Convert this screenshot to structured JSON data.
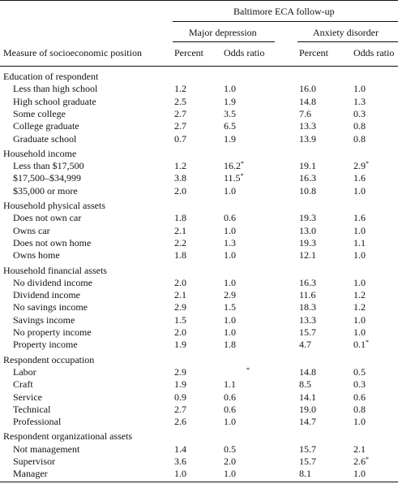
{
  "table": {
    "spanner": "Baltimore ECA follow-up",
    "groups": {
      "depression": "Major depression",
      "anxiety": "Anxiety disorder"
    },
    "stub_header": "Measure of socioeconomic position",
    "col_headers": [
      "Percent",
      "Odds ratio",
      "Percent",
      "Odds ratio"
    ],
    "sections": [
      {
        "title": "Education of respondent",
        "rows": [
          {
            "label": "Less than high school",
            "values": [
              "1.2",
              "1.0",
              "16.0",
              "1.0"
            ]
          },
          {
            "label": "High school graduate",
            "values": [
              "2.5",
              "1.9",
              "14.8",
              "1.3"
            ]
          },
          {
            "label": "Some college",
            "values": [
              "2.7",
              "3.5",
              "7.6",
              "0.3"
            ]
          },
          {
            "label": "College graduate",
            "values": [
              "2.7",
              "6.5",
              "13.3",
              "0.8"
            ]
          },
          {
            "label": "Graduate school",
            "values": [
              "0.7",
              "1.9",
              "13.9",
              "0.8"
            ]
          }
        ]
      },
      {
        "title": "Household income",
        "rows": [
          {
            "label": "Less than $17,500",
            "values": [
              "1.2",
              "16.2*",
              "19.1",
              "2.9*"
            ]
          },
          {
            "label": "$17,500–$34,999",
            "values": [
              "3.8",
              "11.5*",
              "16.3",
              "1.6"
            ]
          },
          {
            "label": "$35,000 or more",
            "values": [
              "2.0",
              "1.0",
              "10.8",
              "1.0"
            ]
          }
        ]
      },
      {
        "title": "Household physical assets",
        "rows": [
          {
            "label": "Does not own car",
            "values": [
              "1.8",
              "0.6",
              "19.3",
              "1.6"
            ]
          },
          {
            "label": "Owns car",
            "values": [
              "2.1",
              "1.0",
              "13.0",
              "1.0"
            ]
          },
          {
            "label": "Does not own home",
            "values": [
              "2.2",
              "1.3",
              "19.3",
              "1.1"
            ]
          },
          {
            "label": "Owns home",
            "values": [
              "1.8",
              "1.0",
              "12.1",
              "1.0"
            ]
          }
        ]
      },
      {
        "title": "Household financial assets",
        "rows": [
          {
            "label": "No dividend income",
            "values": [
              "2.0",
              "1.0",
              "16.3",
              "1.0"
            ]
          },
          {
            "label": "Dividend income",
            "values": [
              "2.1",
              "2.9",
              "11.6",
              "1.2"
            ]
          },
          {
            "label": "No savings income",
            "values": [
              "2.9",
              "1.5",
              "18.3",
              "1.2"
            ]
          },
          {
            "label": "Savings income",
            "values": [
              "1.5",
              "1.0",
              "13.3",
              "1.0"
            ]
          },
          {
            "label": "No property income",
            "values": [
              "2.0",
              "1.0",
              "15.7",
              "1.0"
            ]
          },
          {
            "label": "Property income",
            "values": [
              "1.9",
              "1.8",
              "4.7",
              "0.1*"
            ]
          }
        ]
      },
      {
        "title": "Respondent occupation",
        "rows": [
          {
            "label": "Labor",
            "values": [
              "2.9",
              "*",
              "14.8",
              "0.5"
            ]
          },
          {
            "label": "Craft",
            "values": [
              "1.9",
              "1.1",
              "8.5",
              "0.3"
            ]
          },
          {
            "label": "Service",
            "values": [
              "0.9",
              "0.6",
              "14.1",
              "0.6"
            ]
          },
          {
            "label": "Technical",
            "values": [
              "2.7",
              "0.6",
              "19.0",
              "0.8"
            ]
          },
          {
            "label": "Professional",
            "values": [
              "2.6",
              "1.0",
              "14.7",
              "1.0"
            ]
          }
        ]
      },
      {
        "title": "Respondent organizational assets",
        "rows": [
          {
            "label": "Not management",
            "values": [
              "1.4",
              "0.5",
              "15.7",
              "2.1"
            ]
          },
          {
            "label": "Supervisor",
            "values": [
              "3.6",
              "2.0",
              "15.7",
              "2.6*"
            ]
          },
          {
            "label": "Manager",
            "values": [
              "1.0",
              "1.0",
              "8.1",
              "1.0"
            ]
          }
        ]
      }
    ]
  }
}
